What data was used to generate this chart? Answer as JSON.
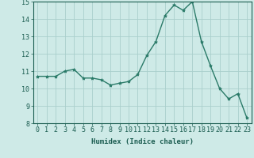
{
  "x": [
    0,
    1,
    2,
    3,
    4,
    5,
    6,
    7,
    8,
    9,
    10,
    11,
    12,
    13,
    14,
    15,
    16,
    17,
    18,
    19,
    20,
    21,
    22,
    23
  ],
  "y": [
    10.7,
    10.7,
    10.7,
    11.0,
    11.1,
    10.6,
    10.6,
    10.5,
    10.2,
    10.3,
    10.4,
    10.8,
    11.9,
    12.7,
    14.2,
    14.8,
    14.5,
    15.0,
    12.7,
    11.3,
    10.0,
    9.4,
    9.7,
    8.3
  ],
  "line_color": "#2a7a68",
  "marker": "*",
  "marker_size": 3,
  "bg_color": "#ceeae7",
  "grid_color": "#aacfcc",
  "tick_color": "#1a5c50",
  "label_color": "#1a5c50",
  "xlabel": "Humidex (Indice chaleur)",
  "ylim": [
    8,
    15
  ],
  "yticks": [
    8,
    9,
    10,
    11,
    12,
    13,
    14,
    15
  ],
  "xticks": [
    0,
    1,
    2,
    3,
    4,
    5,
    6,
    7,
    8,
    9,
    10,
    11,
    12,
    13,
    14,
    15,
    16,
    17,
    18,
    19,
    20,
    21,
    22,
    23
  ],
  "xlabel_fontsize": 6.5,
  "tick_fontsize": 6.0
}
